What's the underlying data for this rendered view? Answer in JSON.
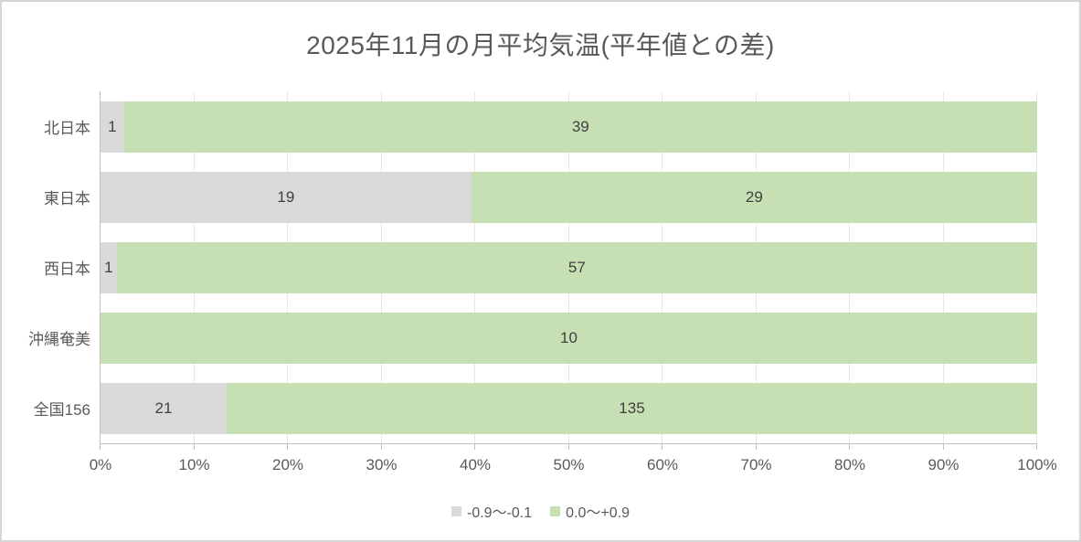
{
  "chart_data": {
    "type": "bar",
    "orientation": "horizontal",
    "stacking": "percent",
    "title": "2025年11月の月平均気温(平年値との差)",
    "categories": [
      "北日本",
      "東日本",
      "西日本",
      "沖縄奄美",
      "全国156"
    ],
    "series": [
      {
        "name": "-0.9〜-0.1",
        "color": "#d9d9d9",
        "values": [
          1,
          19,
          1,
          0,
          21
        ]
      },
      {
        "name": "0.0〜+0.9",
        "color": "#c6dfb3",
        "values": [
          39,
          29,
          57,
          10,
          135
        ]
      }
    ],
    "x_ticks": [
      "0%",
      "10%",
      "20%",
      "30%",
      "40%",
      "50%",
      "60%",
      "70%",
      "80%",
      "90%",
      "100%"
    ],
    "xlim": [
      0,
      100
    ],
    "grid": "vertical",
    "show_data_labels": true,
    "legend_position": "bottom"
  }
}
